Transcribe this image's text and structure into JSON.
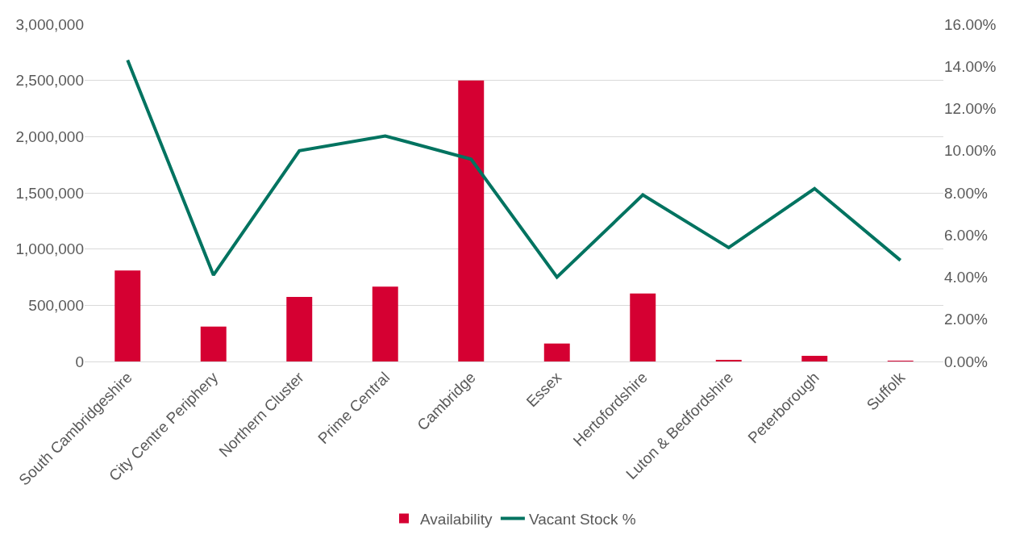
{
  "chart_data": {
    "type": "bar",
    "categories": [
      "South Cambridgeshire",
      "City Centre Periphery",
      "Northern Cluster",
      "Prime Central",
      "Cambridge",
      "Essex",
      "Hertofordshire",
      "Luton & Bedfordshire",
      "Peterborough",
      "Suffolk"
    ],
    "series": [
      {
        "name": "Availability",
        "color": "#d50032",
        "values": [
          810000,
          310000,
          575000,
          665000,
          2500000,
          160000,
          605000,
          15000,
          50000,
          3000
        ]
      },
      {
        "name": "Vacant Stock %",
        "type": "line",
        "axis": "y2",
        "color": "#007360",
        "values": [
          14.3,
          4.1,
          10.0,
          10.7,
          9.6,
          4.0,
          7.9,
          5.4,
          8.2,
          4.8
        ]
      }
    ],
    "ylim": [
      0,
      3000000
    ],
    "yticks": [
      {
        "value": 0,
        "label": "0"
      },
      {
        "value": 500000,
        "label": "500,000"
      },
      {
        "value": 1000000,
        "label": "1,000,000"
      },
      {
        "value": 1500000,
        "label": "1,500,000"
      },
      {
        "value": 2000000,
        "label": "2,000,000"
      },
      {
        "value": 2500000,
        "label": "2,500,000"
      },
      {
        "value": 3000000,
        "label": "3,000,000"
      }
    ],
    "y2lim": [
      0,
      16
    ],
    "y2ticks": [
      {
        "value": 0,
        "label": "0.00%"
      },
      {
        "value": 2,
        "label": "2.00%"
      },
      {
        "value": 4,
        "label": "4.00%"
      },
      {
        "value": 6,
        "label": "6.00%"
      },
      {
        "value": 8,
        "label": "8.00%"
      },
      {
        "value": 10,
        "label": "10.00%"
      },
      {
        "value": 12,
        "label": "12.00%"
      },
      {
        "value": 14,
        "label": "14.00%"
      },
      {
        "value": 16,
        "label": "16.00%"
      }
    ],
    "grid": "y",
    "legend": "bottom",
    "marker": "none",
    "line_style": "solid"
  }
}
